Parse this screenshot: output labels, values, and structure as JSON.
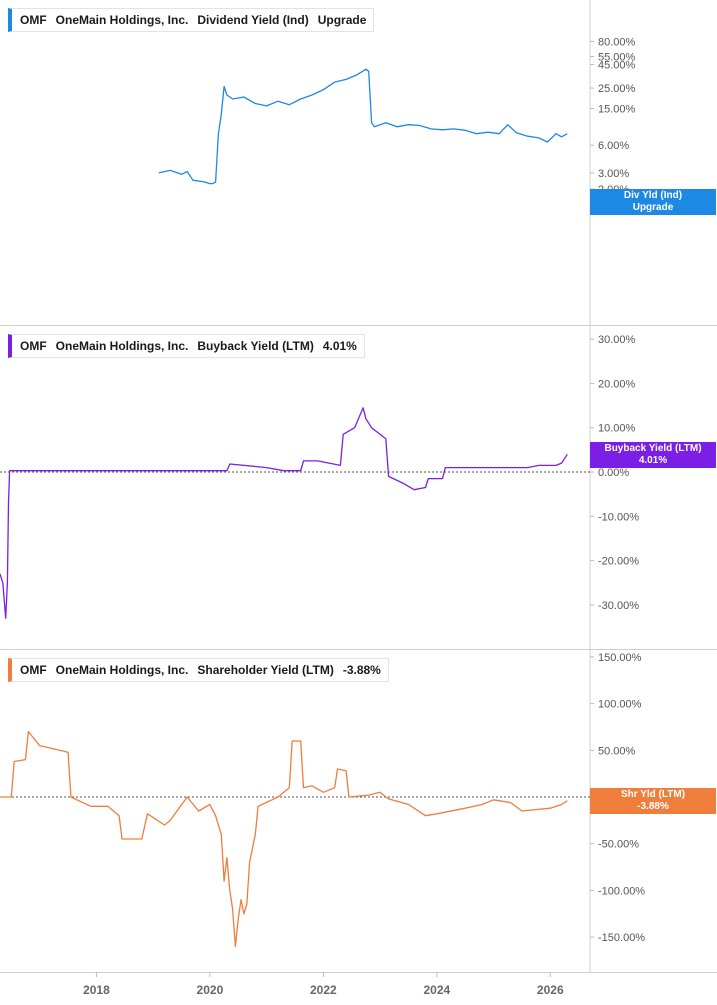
{
  "colors": {
    "dividend": "#1e88e5",
    "buyback": "#7b1fe6",
    "shareholder": "#ef7d3c",
    "grid": "#d4d4d4",
    "axis_text": "#555555"
  },
  "x_axis": {
    "ticks": [
      "2018",
      "2020",
      "2022",
      "2024",
      "2026"
    ],
    "range": [
      2016.3,
      2026.7
    ]
  },
  "panels": [
    {
      "ticker": "OMF",
      "company": "OneMain Holdings, Inc.",
      "metric": "Dividend Yield (Ind)",
      "value": "Upgrade",
      "tag_line1": "Div Yld (Ind)",
      "tag_line2": "Upgrade",
      "y_ticks": [
        "80.00%",
        "55.00%",
        "45.00%",
        "25.00%",
        "15.00%",
        "6.00%",
        "3.00%",
        "2.00%"
      ],
      "scale": "log"
    },
    {
      "ticker": "OMF",
      "company": "OneMain Holdings, Inc.",
      "metric": "Buyback Yield (LTM)",
      "value": "4.01%",
      "tag_line1": "Buyback Yield (LTM)",
      "tag_line2": "4.01%",
      "y_ticks": [
        "30.00%",
        "20.00%",
        "10.00%",
        "0.00%",
        "-10.00%",
        "-20.00%",
        "-30.00%"
      ],
      "scale": "linear"
    },
    {
      "ticker": "OMF",
      "company": "OneMain Holdings, Inc.",
      "metric": "Shareholder Yield (LTM)",
      "value": "-3.88%",
      "tag_line1": "Shr Yld (LTM)",
      "tag_line2": "-3.88%",
      "y_ticks": [
        "150.00%",
        "100.00%",
        "50.00%",
        "0.00%",
        "-50.00%",
        "-100.00%",
        "-150.00%"
      ],
      "scale": "linear"
    }
  ],
  "chart_data": [
    {
      "type": "line",
      "series": [
        {
          "name": "Dividend Yield (Ind)",
          "x": [
            2019.1,
            2019.3,
            2019.5,
            2019.6,
            2019.7,
            2019.9,
            2020.0,
            2020.05,
            2020.1,
            2020.15,
            2020.2,
            2020.25,
            2020.3,
            2020.4,
            2020.6,
            2020.8,
            2021.0,
            2021.2,
            2021.4,
            2021.6,
            2021.8,
            2022.0,
            2022.2,
            2022.4,
            2022.6,
            2022.75,
            2022.8,
            2022.85,
            2022.9,
            2023.1,
            2023.3,
            2023.5,
            2023.7,
            2023.9,
            2024.1,
            2024.3,
            2024.5,
            2024.7,
            2024.9,
            2025.1,
            2025.25,
            2025.4,
            2025.6,
            2025.8,
            2025.95,
            2026.1,
            2026.2,
            2026.3
          ],
          "y": [
            3.0,
            3.2,
            2.9,
            3.1,
            2.5,
            2.4,
            2.3,
            2.3,
            2.4,
            8.0,
            13.0,
            26.0,
            21.0,
            19.0,
            20.0,
            17.0,
            16.0,
            18.0,
            16.5,
            19.0,
            21.0,
            24.0,
            29.0,
            31.0,
            35.0,
            40.0,
            38.0,
            10.5,
            9.5,
            10.5,
            9.5,
            10.0,
            9.8,
            9.0,
            8.8,
            9.0,
            8.7,
            8.0,
            8.3,
            8.0,
            10.0,
            8.2,
            7.5,
            7.2,
            6.5,
            8.0,
            7.4,
            8.0
          ]
        }
      ],
      "ylim": [
        1.8,
        100
      ],
      "scale": "log"
    },
    {
      "type": "line",
      "series": [
        {
          "name": "Buyback Yield (LTM)",
          "x": [
            2016.3,
            2016.35,
            2016.4,
            2016.43,
            2016.45,
            2016.47,
            2016.5,
            2020.3,
            2020.35,
            2021.0,
            2021.3,
            2021.35,
            2021.6,
            2021.65,
            2021.9,
            2022.3,
            2022.35,
            2022.55,
            2022.7,
            2022.75,
            2022.85,
            2023.1,
            2023.15,
            2023.4,
            2023.6,
            2023.8,
            2023.85,
            2024.1,
            2024.15,
            2025.0,
            2025.6,
            2025.8,
            2026.1,
            2026.2,
            2026.3
          ],
          "y": [
            -23.0,
            -25.0,
            -33.0,
            -25.0,
            -7.0,
            0.3,
            0.3,
            0.3,
            1.8,
            1.0,
            0.3,
            0.3,
            0.3,
            2.5,
            2.5,
            1.5,
            8.5,
            10.0,
            14.5,
            12.0,
            10.0,
            7.5,
            -1.0,
            -2.5,
            -4.0,
            -3.5,
            -1.5,
            -1.5,
            1.0,
            1.0,
            1.0,
            1.5,
            1.5,
            2.0,
            4.0
          ]
        }
      ],
      "ylim": [
        -35,
        35
      ]
    },
    {
      "type": "line",
      "series": [
        {
          "name": "Shareholder Yield (LTM)",
          "x": [
            2016.3,
            2016.5,
            2016.55,
            2016.75,
            2016.8,
            2017.0,
            2017.5,
            2017.55,
            2017.9,
            2018.2,
            2018.4,
            2018.45,
            2018.8,
            2018.9,
            2019.2,
            2019.3,
            2019.6,
            2019.8,
            2020.0,
            2020.1,
            2020.2,
            2020.25,
            2020.3,
            2020.35,
            2020.4,
            2020.45,
            2020.5,
            2020.55,
            2020.6,
            2020.65,
            2020.7,
            2020.8,
            2020.85,
            2021.2,
            2021.4,
            2021.45,
            2021.6,
            2021.65,
            2021.8,
            2022.0,
            2022.2,
            2022.25,
            2022.4,
            2022.45,
            2022.8,
            2023.0,
            2023.1,
            2023.15,
            2023.5,
            2023.8,
            2024.0,
            2024.5,
            2024.8,
            2025.0,
            2025.3,
            2025.5,
            2026.0,
            2026.2,
            2026.3
          ],
          "y": [
            0,
            0,
            38,
            40,
            70,
            55,
            48,
            0,
            -10,
            -10,
            -20,
            -45,
            -45,
            -18,
            -30,
            -25,
            0,
            -15,
            -8,
            -20,
            -40,
            -90,
            -65,
            -100,
            -120,
            -160,
            -130,
            -110,
            -125,
            -115,
            -70,
            -40,
            -10,
            0,
            10,
            60,
            60,
            10,
            12,
            5,
            10,
            30,
            28,
            0,
            2,
            5,
            0,
            -2,
            -8,
            -20,
            -18,
            -12,
            -8,
            -3,
            -6,
            -15,
            -12,
            -8,
            -4
          ]
        }
      ],
      "ylim": [
        -170,
        160
      ]
    }
  ]
}
